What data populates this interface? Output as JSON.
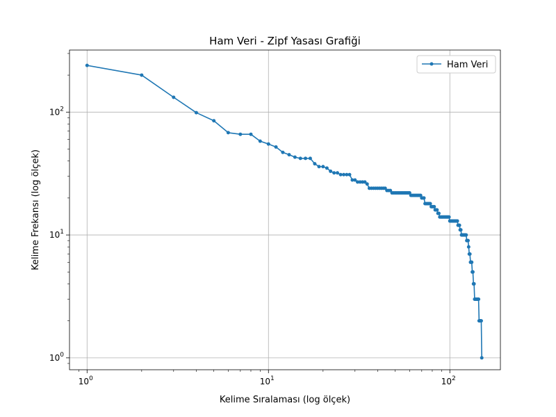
{
  "chart_data": {
    "type": "line",
    "title": "Ham Veri - Zipf Yasası Grafiği",
    "xlabel": "Kelime Sıralaması (log ölçek)",
    "ylabel": "Kelime Frekansı (log ölçek)",
    "xscale": "log",
    "yscale": "log",
    "xlim": [
      0.8,
      190
    ],
    "ylim": [
      0.8,
      320
    ],
    "grid": true,
    "legend": "top-right",
    "x_ticks": [
      {
        "value": 1,
        "base": "10",
        "exp": "0"
      },
      {
        "value": 10,
        "base": "10",
        "exp": "1"
      },
      {
        "value": 100,
        "base": "10",
        "exp": "2"
      }
    ],
    "y_ticks": [
      {
        "value": 1,
        "base": "10",
        "exp": "0"
      },
      {
        "value": 10,
        "base": "10",
        "exp": "1"
      },
      {
        "value": 100,
        "base": "10",
        "exp": "2"
      }
    ],
    "series": [
      {
        "name": "Ham Veri",
        "color": "#1f77b4",
        "x": [
          1,
          2,
          3,
          4,
          5,
          6,
          7,
          8,
          9,
          10,
          11,
          12,
          13,
          14,
          15,
          16,
          17,
          18,
          19,
          20,
          21,
          22,
          23,
          24,
          25,
          26,
          27,
          28,
          29,
          30,
          31,
          32,
          33,
          34,
          35,
          36,
          37,
          38,
          39,
          40,
          41,
          42,
          43,
          44,
          45,
          46,
          47,
          48,
          49,
          50,
          51,
          52,
          53,
          54,
          55,
          56,
          57,
          58,
          59,
          60,
          61,
          62,
          63,
          64,
          65,
          66,
          67,
          68,
          69,
          70,
          71,
          72,
          73,
          74,
          75,
          76,
          77,
          78,
          79,
          80,
          81,
          82,
          83,
          84,
          85,
          86,
          87,
          88,
          89,
          90,
          91,
          92,
          93,
          94,
          95,
          96,
          97,
          98,
          99,
          100,
          101,
          102,
          103,
          104,
          105,
          106,
          107,
          108,
          109,
          110,
          111,
          112,
          113,
          114,
          115,
          116,
          117,
          118,
          119,
          120,
          121,
          122,
          123,
          124,
          125,
          126,
          127,
          128,
          129,
          130,
          131,
          132,
          133,
          134,
          135,
          136,
          137,
          138,
          139,
          140,
          141,
          142,
          143,
          144,
          145,
          146,
          147,
          148,
          149,
          150
        ],
        "y": [
          240,
          200,
          132,
          99,
          85,
          68,
          66,
          66,
          58,
          55,
          52,
          47,
          45,
          43,
          42,
          42,
          42,
          38,
          36,
          36,
          35,
          33,
          32,
          32,
          31,
          31,
          31,
          31,
          28,
          28,
          27,
          27,
          27,
          27,
          26,
          24,
          24,
          24,
          24,
          24,
          24,
          24,
          24,
          24,
          23,
          23,
          23,
          22,
          22,
          22,
          22,
          22,
          22,
          22,
          22,
          22,
          22,
          22,
          22,
          22,
          21,
          21,
          21,
          21,
          21,
          21,
          21,
          21,
          21,
          20,
          20,
          20,
          18,
          18,
          18,
          18,
          18,
          18,
          17,
          17,
          17,
          17,
          16,
          16,
          16,
          15,
          15,
          14,
          14,
          14,
          14,
          14,
          14,
          14,
          14,
          14,
          14,
          14,
          14,
          13,
          13,
          13,
          13,
          13,
          13,
          13,
          13,
          13,
          13,
          13,
          12,
          12,
          12,
          11,
          11,
          10,
          10,
          10,
          10,
          10,
          10,
          10,
          10,
          9,
          9,
          9,
          8,
          7,
          7,
          6,
          6,
          6,
          5,
          5,
          4,
          4,
          3,
          3,
          3,
          3,
          3,
          3,
          3,
          3,
          2,
          2,
          2,
          2,
          2,
          1
        ]
      }
    ]
  }
}
